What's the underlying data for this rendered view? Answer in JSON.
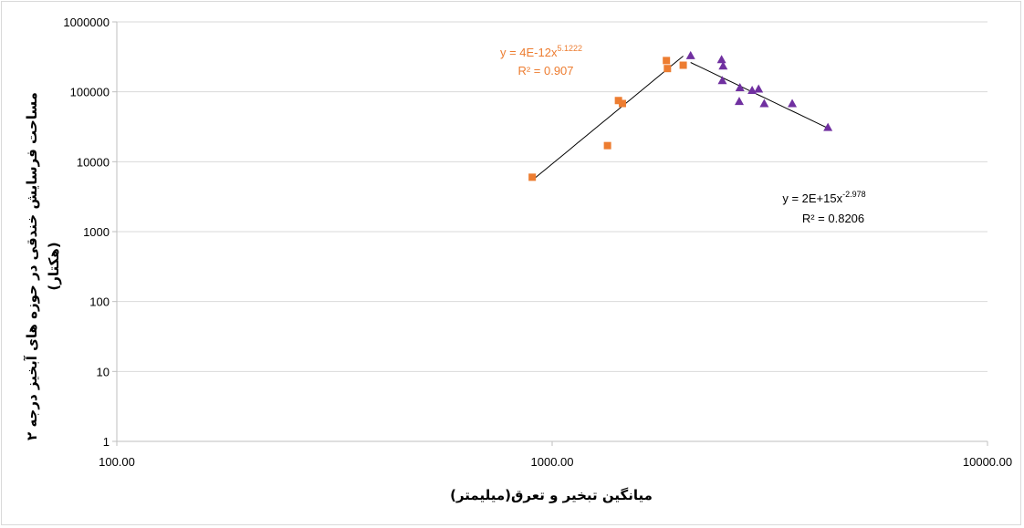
{
  "chart_data": {
    "type": "scatter",
    "x_scale": "log",
    "y_scale": "log",
    "xlim": [
      100,
      10000
    ],
    "ylim": [
      1,
      1000000
    ],
    "x_ticks": [
      "100.00",
      "1000.00",
      "10000.00"
    ],
    "y_ticks": [
      "1",
      "10",
      "100",
      "1000",
      "10000",
      "100000",
      "1000000"
    ],
    "xlabel": "میانگین تبخیر و تعرق(میلیمتر)",
    "ylabel_line1": "مساحت فرسایش خندقی در حوزه های آبخیز درجه ۲",
    "ylabel_line2": "(هکتار)",
    "grid": "horizontal",
    "series": [
      {
        "marker": "square",
        "color": "#ed7d31",
        "points": [
          [
            900,
            6000
          ],
          [
            1340,
            17000
          ],
          [
            1420,
            75000
          ],
          [
            1450,
            68000
          ],
          [
            1830,
            280000
          ],
          [
            1840,
            215000
          ],
          [
            2000,
            240000
          ]
        ]
      },
      {
        "marker": "triangle",
        "color": "#7030a0",
        "points": [
          [
            2080,
            330000
          ],
          [
            2450,
            290000
          ],
          [
            2470,
            235000
          ],
          [
            2460,
            145000
          ],
          [
            2700,
            115000
          ],
          [
            2690,
            73000
          ],
          [
            2880,
            105000
          ],
          [
            2980,
            110000
          ],
          [
            3070,
            68000
          ],
          [
            3560,
            68000
          ],
          [
            4300,
            31000
          ]
        ]
      }
    ],
    "trendlines": [
      {
        "x_range": [
          900,
          2000
        ],
        "coef": 4e-12,
        "exponent": 5.1222,
        "color": "#000000",
        "label_line1_prefix": "y = 4E-12x",
        "label_line1_sup": "5.1222",
        "label_line2": "R² = 0.907",
        "label_color": "#ed7d31"
      },
      {
        "x_range": [
          2080,
          4300
        ],
        "coef": 2000000000000000.0,
        "exponent": -2.978,
        "color": "#000000",
        "label_line1_prefix": "y = 2E+15x",
        "label_line1_sup": "-2.978",
        "label_line2": "R² = 0.8206",
        "label_color": "#000000"
      }
    ]
  }
}
